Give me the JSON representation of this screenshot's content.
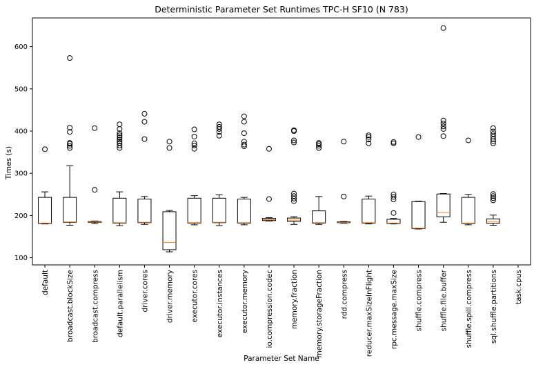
{
  "chart_data": {
    "type": "boxplot",
    "title": "Deterministic Parameter Set Runtimes TPC-H SF10 (N 783)",
    "xlabel": "Parameter Set Name",
    "ylabel": "Times (s)",
    "ylim": [
      83,
      668
    ],
    "yticks": [
      100,
      200,
      300,
      400,
      500,
      600
    ],
    "grid": false,
    "box_color": "#000000",
    "median_color": "#ff7f0e",
    "categories": [
      "default",
      "broadcast.blockSize",
      "broadcast.compress",
      "default.parallelism",
      "driver.cores",
      "driver.memory",
      "executor.cores",
      "executor.instances",
      "executor.memory",
      "io.compression.codec",
      "memory.fraction",
      "memory.storageFraction",
      "rdd.compress",
      "reducer.maxSizeInFlight",
      "rpc.message.maxSize",
      "shuffle.compress",
      "shuffle.file.buffer",
      "shuffle.spill.compress",
      "sql.shuffle.partitions",
      "task.cpus"
    ],
    "boxes": [
      {
        "whislo": 180,
        "q1": 181,
        "med": 182,
        "q3": 243,
        "whishi": 256,
        "fliers": [
          357
        ]
      },
      {
        "whislo": 177,
        "q1": 184,
        "med": 185,
        "q3": 243,
        "whishi": 318,
        "fliers": [
          360,
          365,
          370,
          372,
          398,
          408,
          573
        ]
      },
      {
        "whislo": 181,
        "q1": 184,
        "med": 185,
        "q3": 186,
        "whishi": 187,
        "fliers": [
          261,
          407
        ]
      },
      {
        "whislo": 176,
        "q1": 182,
        "med": 183,
        "q3": 241,
        "whishi": 256,
        "fliers": [
          360,
          366,
          372,
          376,
          380,
          385,
          390,
          395,
          405,
          416
        ]
      },
      {
        "whislo": 179,
        "q1": 183,
        "med": 184,
        "q3": 239,
        "whishi": 245,
        "fliers": [
          381,
          422,
          441
        ]
      },
      {
        "whislo": 114,
        "q1": 119,
        "med": 136,
        "q3": 209,
        "whishi": 212,
        "fliers": [
          360,
          375
        ]
      },
      {
        "whislo": 178,
        "q1": 182,
        "med": 183,
        "q3": 241,
        "whishi": 247,
        "fliers": [
          358,
          366,
          371,
          387,
          404
        ]
      },
      {
        "whislo": 176,
        "q1": 183,
        "med": 184,
        "q3": 241,
        "whishi": 249,
        "fliers": [
          389,
          398,
          405,
          410,
          416
        ]
      },
      {
        "whislo": 178,
        "q1": 182,
        "med": 183,
        "q3": 239,
        "whishi": 243,
        "fliers": [
          364,
          368,
          375,
          395,
          422,
          435
        ]
      },
      {
        "whislo": 187,
        "q1": 188,
        "med": 190,
        "q3": 193,
        "whishi": 195,
        "fliers": [
          239,
          358
        ]
      },
      {
        "whislo": 179,
        "q1": 186,
        "med": 189,
        "q3": 194,
        "whishi": 197,
        "fliers": [
          234,
          240,
          246,
          252,
          373,
          378,
          400,
          402
        ]
      },
      {
        "whislo": 179,
        "q1": 182,
        "med": 183,
        "q3": 211,
        "whishi": 245,
        "fliers": [
          360,
          365,
          369,
          372
        ]
      },
      {
        "whislo": 182,
        "q1": 183,
        "med": 184,
        "q3": 185,
        "whishi": 186,
        "fliers": [
          245,
          375
        ]
      },
      {
        "whislo": 180,
        "q1": 182,
        "med": 183,
        "q3": 239,
        "whishi": 246,
        "fliers": [
          371,
          380,
          386,
          390
        ]
      },
      {
        "whislo": 180,
        "q1": 181,
        "med": 182,
        "q3": 191,
        "whishi": 193,
        "fliers": [
          206,
          238,
          244,
          250,
          371,
          374
        ]
      },
      {
        "whislo": 168,
        "q1": 169,
        "med": 170,
        "q3": 233,
        "whishi": 234,
        "fliers": [
          386
        ]
      },
      {
        "whislo": 184,
        "q1": 197,
        "med": 207,
        "q3": 251,
        "whishi": 252,
        "fliers": [
          388,
          405,
          411,
          418,
          425,
          644
        ]
      },
      {
        "whislo": 178,
        "q1": 181,
        "med": 182,
        "q3": 243,
        "whishi": 250,
        "fliers": [
          378
        ]
      },
      {
        "whislo": 177,
        "q1": 182,
        "med": 186,
        "q3": 192,
        "whishi": 201,
        "fliers": [
          236,
          241,
          246,
          251,
          371,
          376,
          381,
          387,
          393,
          399,
          407
        ]
      },
      {
        "whislo": null,
        "q1": null,
        "med": null,
        "q3": null,
        "whishi": null,
        "fliers": []
      }
    ]
  }
}
